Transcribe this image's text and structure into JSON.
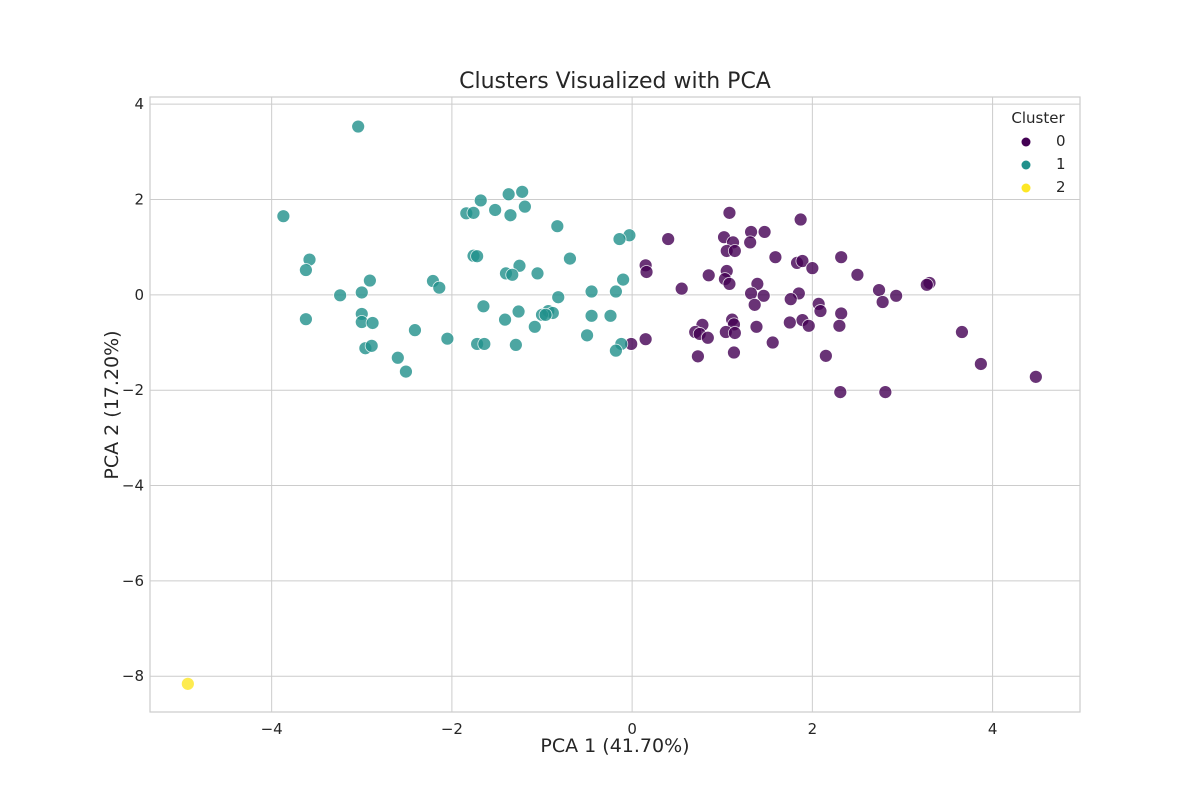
{
  "chart_data": {
    "type": "scatter",
    "title": "Clusters Visualized with PCA",
    "xlabel": "PCA 1 (41.70%)",
    "ylabel": "PCA 2 (17.20%)",
    "xlim": [
      -5.35,
      4.97
    ],
    "ylim": [
      -8.75,
      4.15
    ],
    "xticks": [
      -4,
      -2,
      0,
      2,
      4
    ],
    "xtick_labels": [
      "−4",
      "−2",
      "0",
      "2",
      "4"
    ],
    "yticks": [
      -8,
      -6,
      -4,
      -2,
      0,
      2,
      4
    ],
    "ytick_labels": [
      "−8",
      "−6",
      "−4",
      "−2",
      "0",
      "2",
      "4"
    ],
    "grid": true,
    "legend": {
      "title": "Cluster",
      "position": "top-right"
    },
    "series": [
      {
        "name": "0",
        "color": "#440154",
        "points": [
          [
            1.08,
            1.72
          ],
          [
            1.87,
            1.58
          ],
          [
            0.4,
            1.17
          ],
          [
            1.32,
            1.32
          ],
          [
            1.47,
            1.32
          ],
          [
            1.02,
            1.21
          ],
          [
            1.12,
            1.1
          ],
          [
            1.31,
            1.1
          ],
          [
            1.05,
            0.92
          ],
          [
            1.14,
            0.92
          ],
          [
            1.59,
            0.79
          ],
          [
            2.32,
            0.79
          ],
          [
            1.83,
            0.67
          ],
          [
            1.89,
            0.71
          ],
          [
            2.0,
            0.56
          ],
          [
            0.15,
            0.62
          ],
          [
            0.16,
            0.48
          ],
          [
            0.85,
            0.41
          ],
          [
            1.05,
            0.5
          ],
          [
            1.03,
            0.33
          ],
          [
            1.08,
            0.23
          ],
          [
            1.39,
            0.23
          ],
          [
            2.5,
            0.42
          ],
          [
            3.3,
            0.25
          ],
          [
            3.27,
            0.21
          ],
          [
            0.55,
            0.13
          ],
          [
            1.32,
            0.03
          ],
          [
            1.46,
            -0.02
          ],
          [
            1.85,
            0.03
          ],
          [
            1.76,
            -0.09
          ],
          [
            2.74,
            0.1
          ],
          [
            2.93,
            -0.02
          ],
          [
            2.07,
            -0.19
          ],
          [
            2.78,
            -0.15
          ],
          [
            1.36,
            -0.21
          ],
          [
            2.09,
            -0.34
          ],
          [
            2.32,
            -0.39
          ],
          [
            1.89,
            -0.53
          ],
          [
            1.11,
            -0.52
          ],
          [
            1.75,
            -0.58
          ],
          [
            1.96,
            -0.65
          ],
          [
            2.3,
            -0.65
          ],
          [
            1.13,
            -0.62
          ],
          [
            1.38,
            -0.67
          ],
          [
            0.78,
            -0.63
          ],
          [
            0.7,
            -0.78
          ],
          [
            1.04,
            -0.78
          ],
          [
            0.75,
            -0.82
          ],
          [
            0.84,
            -0.9
          ],
          [
            1.14,
            -0.8
          ],
          [
            3.66,
            -0.78
          ],
          [
            0.15,
            -0.93
          ],
          [
            -0.01,
            -1.03
          ],
          [
            1.56,
            -1.0
          ],
          [
            1.13,
            -1.21
          ],
          [
            2.15,
            -1.28
          ],
          [
            0.73,
            -1.29
          ],
          [
            3.87,
            -1.45
          ],
          [
            4.48,
            -1.72
          ],
          [
            2.31,
            -2.04
          ],
          [
            2.81,
            -2.04
          ]
        ]
      },
      {
        "name": "1",
        "color": "#21918c",
        "points": [
          [
            -3.04,
            3.53
          ],
          [
            -1.22,
            2.16
          ],
          [
            -1.37,
            2.11
          ],
          [
            -1.68,
            1.98
          ],
          [
            -1.52,
            1.78
          ],
          [
            -1.84,
            1.71
          ],
          [
            -1.76,
            1.72
          ],
          [
            -1.19,
            1.85
          ],
          [
            -1.35,
            1.67
          ],
          [
            -3.87,
            1.65
          ],
          [
            -0.83,
            1.44
          ],
          [
            -0.03,
            1.25
          ],
          [
            -0.14,
            1.17
          ],
          [
            -1.76,
            0.82
          ],
          [
            -1.72,
            0.81
          ],
          [
            -0.69,
            0.76
          ],
          [
            -3.58,
            0.74
          ],
          [
            -3.62,
            0.52
          ],
          [
            -1.25,
            0.61
          ],
          [
            -1.4,
            0.45
          ],
          [
            -1.33,
            0.42
          ],
          [
            -1.05,
            0.45
          ],
          [
            -2.21,
            0.29
          ],
          [
            -2.14,
            0.15
          ],
          [
            -2.91,
            0.3
          ],
          [
            -0.1,
            0.32
          ],
          [
            -3.0,
            0.05
          ],
          [
            -3.24,
            -0.01
          ],
          [
            -0.45,
            0.07
          ],
          [
            -0.18,
            0.07
          ],
          [
            -0.82,
            -0.05
          ],
          [
            -1.65,
            -0.24
          ],
          [
            -3.0,
            -0.4
          ],
          [
            -0.93,
            -0.34
          ],
          [
            -0.88,
            -0.38
          ],
          [
            -1.0,
            -0.42
          ],
          [
            -0.96,
            -0.42
          ],
          [
            -1.26,
            -0.35
          ],
          [
            -0.24,
            -0.44
          ],
          [
            -0.45,
            -0.44
          ],
          [
            -3.0,
            -0.57
          ],
          [
            -2.88,
            -0.59
          ],
          [
            -3.62,
            -0.51
          ],
          [
            -1.41,
            -0.52
          ],
          [
            -1.08,
            -0.67
          ],
          [
            -2.41,
            -0.74
          ],
          [
            -0.5,
            -0.85
          ],
          [
            -2.05,
            -0.92
          ],
          [
            -2.96,
            -1.12
          ],
          [
            -2.89,
            -1.07
          ],
          [
            -1.72,
            -1.03
          ],
          [
            -1.64,
            -1.03
          ],
          [
            -1.29,
            -1.05
          ],
          [
            -0.12,
            -1.03
          ],
          [
            -0.18,
            -1.17
          ],
          [
            -2.6,
            -1.32
          ],
          [
            -2.51,
            -1.61
          ]
        ]
      },
      {
        "name": "2",
        "color": "#fde725",
        "points": [
          [
            -4.93,
            -8.16
          ]
        ]
      }
    ]
  }
}
